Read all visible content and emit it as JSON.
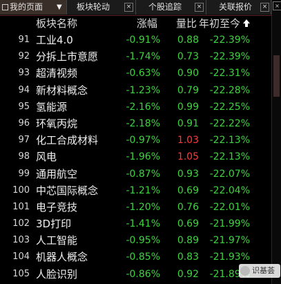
{
  "tabs": [
    {
      "label": "我的页面",
      "active": true
    },
    {
      "label": "板块轮动",
      "active": false
    },
    {
      "label": "个股追踪",
      "active": false
    },
    {
      "label": "关联报价",
      "active": false
    }
  ],
  "columns": {
    "name": "板块名称",
    "change": "涨幅",
    "volume_ratio": "量比",
    "ytd": "年初至今"
  },
  "rows": [
    {
      "idx": "91",
      "name": "工业4.0",
      "change": "-0.91%",
      "volume_ratio": "0.88",
      "ytd": "-22.39%"
    },
    {
      "idx": "92",
      "name": "分拆上市意愿",
      "change": "-1.74%",
      "volume_ratio": "0.73",
      "ytd": "-22.39%"
    },
    {
      "idx": "93",
      "name": "超清视频",
      "change": "-0.63%",
      "volume_ratio": "0.90",
      "ytd": "-22.31%"
    },
    {
      "idx": "94",
      "name": "新材料概念",
      "change": "-1.23%",
      "volume_ratio": "0.79",
      "ytd": "-22.28%"
    },
    {
      "idx": "95",
      "name": "氢能源",
      "change": "-2.16%",
      "volume_ratio": "0.99",
      "ytd": "-22.25%"
    },
    {
      "idx": "96",
      "name": "环氧丙烷",
      "change": "-2.18%",
      "volume_ratio": "0.91",
      "ytd": "-22.22%"
    },
    {
      "idx": "97",
      "name": "化工合成材料",
      "change": "-0.97%",
      "volume_ratio": "1.03",
      "ytd": "-22.13%"
    },
    {
      "idx": "98",
      "name": "风电",
      "change": "-1.96%",
      "volume_ratio": "1.05",
      "ytd": "-22.13%"
    },
    {
      "idx": "99",
      "name": "通用航空",
      "change": "-0.87%",
      "volume_ratio": "0.93",
      "ytd": "-22.07%"
    },
    {
      "idx": "100",
      "name": "中芯国际概念",
      "change": "-1.21%",
      "volume_ratio": "0.69",
      "ytd": "-22.04%"
    },
    {
      "idx": "101",
      "name": "电子竞技",
      "change": "-1.20%",
      "volume_ratio": "0.76",
      "ytd": "-22.01%"
    },
    {
      "idx": "102",
      "name": "3D打印",
      "change": "-1.41%",
      "volume_ratio": "0.69",
      "ytd": "-21.99%"
    },
    {
      "idx": "103",
      "name": "人工智能",
      "change": "-0.95%",
      "volume_ratio": "0.89",
      "ytd": "-21.97%"
    },
    {
      "idx": "104",
      "name": "机器人概念",
      "change": "-0.85%",
      "volume_ratio": "0.83",
      "ytd": "-21.93%"
    },
    {
      "idx": "105",
      "name": "人脸识别",
      "change": "-0.86%",
      "volume_ratio": "0.92",
      "ytd": "-21.89%"
    }
  ],
  "watermark": {
    "text": "识基荟"
  },
  "colors": {
    "negative": "#3fd33f",
    "positive": "#ff3a3a",
    "background": "#000000"
  }
}
